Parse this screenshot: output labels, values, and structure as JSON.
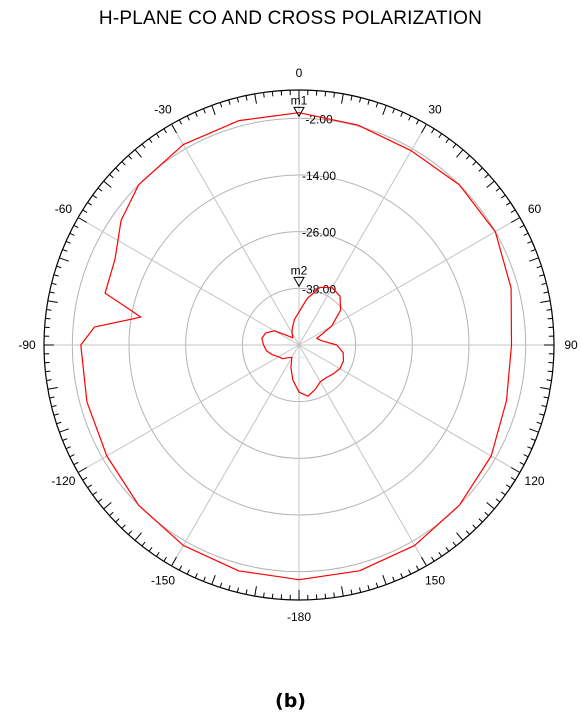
{
  "chart_data": {
    "type": "polar-line",
    "title": "H-PLANE CO AND CROSS POLARIZATION",
    "caption": "(b)",
    "angle_labels": [
      "0",
      "30",
      "60",
      "90",
      "120",
      "150",
      "-180",
      "-150",
      "-120",
      "-90",
      "-60",
      "-30"
    ],
    "ring_labels": [
      "-2.00",
      "-14.00",
      "-26.00",
      "-38.00"
    ],
    "r_range": [
      -50,
      4
    ],
    "ring_values": [
      -2,
      -14,
      -26,
      -38
    ],
    "markers": [
      {
        "name": "m1",
        "angle": 0,
        "value": -2
      },
      {
        "name": "m2",
        "angle": 0,
        "value": -38
      }
    ],
    "series": [
      {
        "color": "#ff0000",
        "angles": [
          0,
          15,
          30,
          45,
          60,
          75,
          90,
          105,
          120,
          135,
          150,
          165,
          180,
          195,
          210,
          225,
          240,
          255,
          270,
          275,
          280,
          285,
          295,
          305,
          315,
          330,
          345
        ],
        "values": [
          -0.8,
          -1.8,
          -2.5,
          -2.0,
          -2.0,
          -3.5,
          -5.0,
          -4.5,
          -3.0,
          -2.0,
          -1.0,
          -0.5,
          -0.3,
          -0.5,
          -1.0,
          -2.0,
          -3.0,
          -3.5,
          -3.8,
          -6.5,
          -16.0,
          -7.5,
          -7.0,
          -4.0,
          -2.0,
          -1.0,
          -0.8
        ]
      },
      {
        "color": "#ff0000",
        "angles": [
          0,
          10,
          20,
          30,
          40,
          50,
          60,
          70,
          80,
          90,
          100,
          110,
          120,
          130,
          140,
          150,
          160,
          170,
          180,
          190,
          200,
          210,
          220,
          230,
          240,
          250,
          260,
          270,
          280,
          290,
          300,
          310,
          320,
          330,
          340,
          350
        ],
        "values": [
          -43,
          -40,
          -37,
          -36,
          -36.5,
          -38.5,
          -42,
          -46,
          -45,
          -42,
          -40.5,
          -40,
          -40,
          -40.5,
          -41,
          -41,
          -40,
          -39,
          -40,
          -42.5,
          -45,
          -47,
          -46.5,
          -45.5,
          -45,
          -44,
          -43,
          -42.5,
          -42,
          -42.5,
          -44,
          -47,
          -48,
          -47,
          -46,
          -44.5
        ]
      }
    ]
  }
}
